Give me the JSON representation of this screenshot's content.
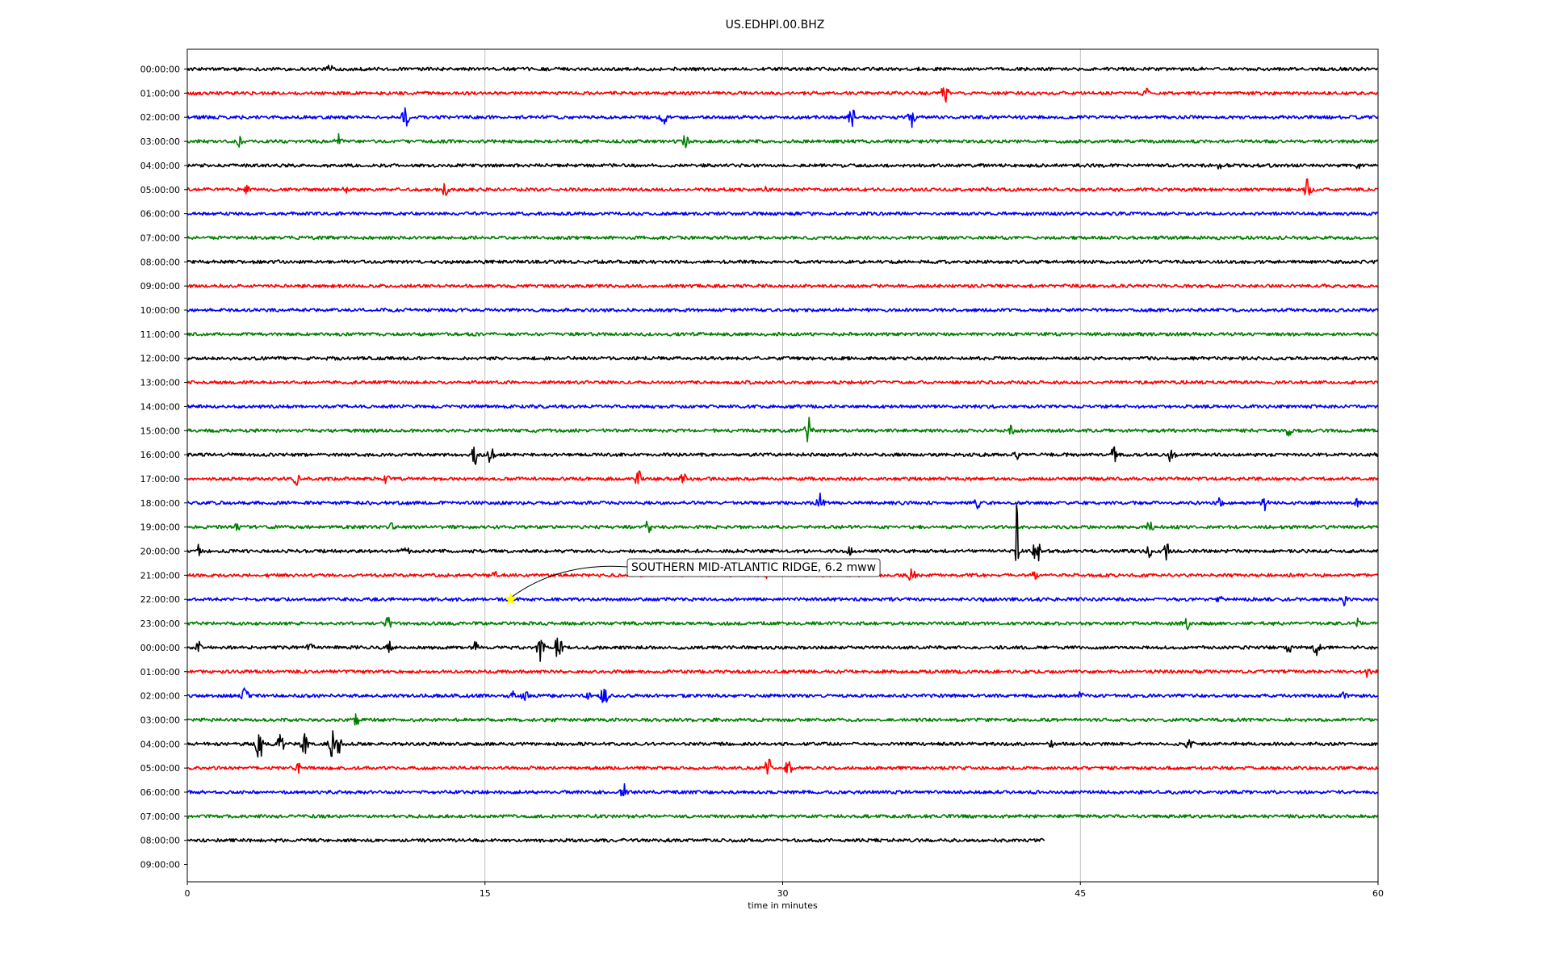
{
  "chart_data": {
    "type": "line",
    "title": "US.EDHPI.00.BHZ",
    "xlabel": "time in minutes",
    "ylabel": "",
    "xlim": [
      0,
      60
    ],
    "x_ticks": [
      0,
      15,
      30,
      45,
      60
    ],
    "x_tick_labels": [
      "0",
      "15",
      "30",
      "45",
      "60"
    ],
    "grid": "vertical lines at x ticks",
    "trace_colors": [
      "#000000",
      "#ff0000",
      "#0000ff",
      "#008000"
    ],
    "row_labels": [
      "00:00:00",
      "01:00:00",
      "02:00:00",
      "03:00:00",
      "04:00:00",
      "05:00:00",
      "06:00:00",
      "07:00:00",
      "08:00:00",
      "09:00:00",
      "10:00:00",
      "11:00:00",
      "12:00:00",
      "13:00:00",
      "14:00:00",
      "15:00:00",
      "16:00:00",
      "17:00:00",
      "18:00:00",
      "19:00:00",
      "20:00:00",
      "21:00:00",
      "22:00:00",
      "23:00:00",
      "00:00:00",
      "01:00:00",
      "02:00:00",
      "03:00:00",
      "04:00:00",
      "05:00:00",
      "06:00:00",
      "07:00:00",
      "08:00:00",
      "09:00:00"
    ],
    "rows_with_data": 33,
    "last_row_end_minute": 43.2,
    "events": [
      {
        "row": 0,
        "minute": 7.2,
        "amp": 0.35
      },
      {
        "row": 1,
        "minute": 38.2,
        "amp": 0.6
      },
      {
        "row": 1,
        "minute": 48.3,
        "amp": 0.35
      },
      {
        "row": 1,
        "minute": 31.5,
        "amp": 0.12
      },
      {
        "row": 2,
        "minute": 11.0,
        "amp": 0.55
      },
      {
        "row": 2,
        "minute": 24.0,
        "amp": 0.4
      },
      {
        "row": 2,
        "minute": 33.5,
        "amp": 0.45
      },
      {
        "row": 2,
        "minute": 36.5,
        "amp": 0.45
      },
      {
        "row": 3,
        "minute": 2.7,
        "amp": 0.4
      },
      {
        "row": 3,
        "minute": 7.6,
        "amp": 0.35
      },
      {
        "row": 3,
        "minute": 25.1,
        "amp": 0.4
      },
      {
        "row": 4,
        "minute": 52.0,
        "amp": 0.18
      },
      {
        "row": 4,
        "minute": 59.0,
        "amp": 0.18
      },
      {
        "row": 5,
        "minute": 3.0,
        "amp": 0.22
      },
      {
        "row": 5,
        "minute": 8.0,
        "amp": 0.22
      },
      {
        "row": 5,
        "minute": 13.0,
        "amp": 0.35
      },
      {
        "row": 5,
        "minute": 29.2,
        "amp": 0.2
      },
      {
        "row": 5,
        "minute": 40.3,
        "amp": 0.2
      },
      {
        "row": 5,
        "minute": 56.5,
        "amp": 0.7
      },
      {
        "row": 15,
        "minute": 31.3,
        "amp": 0.8
      },
      {
        "row": 15,
        "minute": 41.5,
        "amp": 0.25
      },
      {
        "row": 15,
        "minute": 55.5,
        "amp": 0.3
      },
      {
        "row": 16,
        "minute": 14.5,
        "amp": 0.45
      },
      {
        "row": 16,
        "minute": 15.3,
        "amp": 0.45
      },
      {
        "row": 16,
        "minute": 46.7,
        "amp": 0.4
      },
      {
        "row": 16,
        "minute": 49.6,
        "amp": 0.5
      },
      {
        "row": 16,
        "minute": 41.8,
        "amp": 0.25
      },
      {
        "row": 17,
        "minute": 5.5,
        "amp": 0.3
      },
      {
        "row": 17,
        "minute": 10.0,
        "amp": 0.3
      },
      {
        "row": 17,
        "minute": 22.7,
        "amp": 0.55
      },
      {
        "row": 17,
        "minute": 25.0,
        "amp": 0.3
      },
      {
        "row": 18,
        "minute": 9.1,
        "amp": 0.15
      },
      {
        "row": 18,
        "minute": 31.9,
        "amp": 0.6
      },
      {
        "row": 18,
        "minute": 39.8,
        "amp": 0.35
      },
      {
        "row": 18,
        "minute": 52.0,
        "amp": 0.35
      },
      {
        "row": 18,
        "minute": 54.3,
        "amp": 0.35
      },
      {
        "row": 18,
        "minute": 59.0,
        "amp": 0.25
      },
      {
        "row": 19,
        "minute": 2.5,
        "amp": 0.2
      },
      {
        "row": 19,
        "minute": 10.3,
        "amp": 0.25
      },
      {
        "row": 19,
        "minute": 23.2,
        "amp": 0.35
      },
      {
        "row": 19,
        "minute": 48.5,
        "amp": 0.3
      },
      {
        "row": 20,
        "minute": 0.6,
        "amp": 0.35
      },
      {
        "row": 20,
        "minute": 11.0,
        "amp": 0.35
      },
      {
        "row": 20,
        "minute": 33.4,
        "amp": 0.25
      },
      {
        "row": 20,
        "minute": 41.8,
        "amp": 2.5
      },
      {
        "row": 20,
        "minute": 42.8,
        "amp": 0.7
      },
      {
        "row": 20,
        "minute": 48.5,
        "amp": 0.35
      },
      {
        "row": 20,
        "minute": 49.4,
        "amp": 0.5
      },
      {
        "row": 21,
        "minute": 15.5,
        "amp": 0.2
      },
      {
        "row": 21,
        "minute": 29.2,
        "amp": 0.25
      },
      {
        "row": 21,
        "minute": 36.5,
        "amp": 0.35
      },
      {
        "row": 21,
        "minute": 42.7,
        "amp": 0.2
      },
      {
        "row": 22,
        "minute": 40.0,
        "amp": 0.2
      },
      {
        "row": 22,
        "minute": 43.0,
        "amp": 0.2
      },
      {
        "row": 22,
        "minute": 52.0,
        "amp": 0.2
      },
      {
        "row": 22,
        "minute": 58.3,
        "amp": 0.35
      },
      {
        "row": 23,
        "minute": 10.1,
        "amp": 0.35
      },
      {
        "row": 23,
        "minute": 50.4,
        "amp": 0.3
      },
      {
        "row": 23,
        "minute": 59.0,
        "amp": 0.3
      },
      {
        "row": 24,
        "minute": 0.6,
        "amp": 0.3
      },
      {
        "row": 24,
        "minute": 6.2,
        "amp": 0.3
      },
      {
        "row": 24,
        "minute": 10.2,
        "amp": 0.3
      },
      {
        "row": 24,
        "minute": 14.5,
        "amp": 0.3
      },
      {
        "row": 24,
        "minute": 17.8,
        "amp": 0.65
      },
      {
        "row": 24,
        "minute": 18.7,
        "amp": 0.6
      },
      {
        "row": 24,
        "minute": 55.5,
        "amp": 0.4
      },
      {
        "row": 24,
        "minute": 56.9,
        "amp": 0.4
      },
      {
        "row": 25,
        "minute": 59.5,
        "amp": 0.3
      },
      {
        "row": 26,
        "minute": 2.9,
        "amp": 0.4
      },
      {
        "row": 26,
        "minute": 16.3,
        "amp": 0.35
      },
      {
        "row": 26,
        "minute": 17.0,
        "amp": 0.35
      },
      {
        "row": 26,
        "minute": 20.1,
        "amp": 0.4
      },
      {
        "row": 26,
        "minute": 21.0,
        "amp": 0.5
      },
      {
        "row": 26,
        "minute": 45.0,
        "amp": 0.2
      },
      {
        "row": 26,
        "minute": 58.3,
        "amp": 0.2
      },
      {
        "row": 27,
        "minute": 8.5,
        "amp": 0.3
      },
      {
        "row": 28,
        "minute": 3.6,
        "amp": 1.0
      },
      {
        "row": 28,
        "minute": 4.7,
        "amp": 0.45
      },
      {
        "row": 28,
        "minute": 5.9,
        "amp": 0.55
      },
      {
        "row": 28,
        "minute": 7.3,
        "amp": 0.7
      },
      {
        "row": 28,
        "minute": 7.6,
        "amp": 0.55
      },
      {
        "row": 28,
        "minute": 43.5,
        "amp": 0.2
      },
      {
        "row": 28,
        "minute": 50.5,
        "amp": 0.35
      },
      {
        "row": 29,
        "minute": 5.6,
        "amp": 0.25
      },
      {
        "row": 29,
        "minute": 29.3,
        "amp": 0.55
      },
      {
        "row": 29,
        "minute": 30.3,
        "amp": 0.5
      },
      {
        "row": 30,
        "minute": 22.0,
        "amp": 0.4
      }
    ],
    "annotation": {
      "text": "SOUTHERN MID-ATLANTIC RIDGE, 6.2 mww",
      "row": 22,
      "minute": 16.3,
      "marker": "star",
      "marker_color": "#ffff00"
    }
  }
}
